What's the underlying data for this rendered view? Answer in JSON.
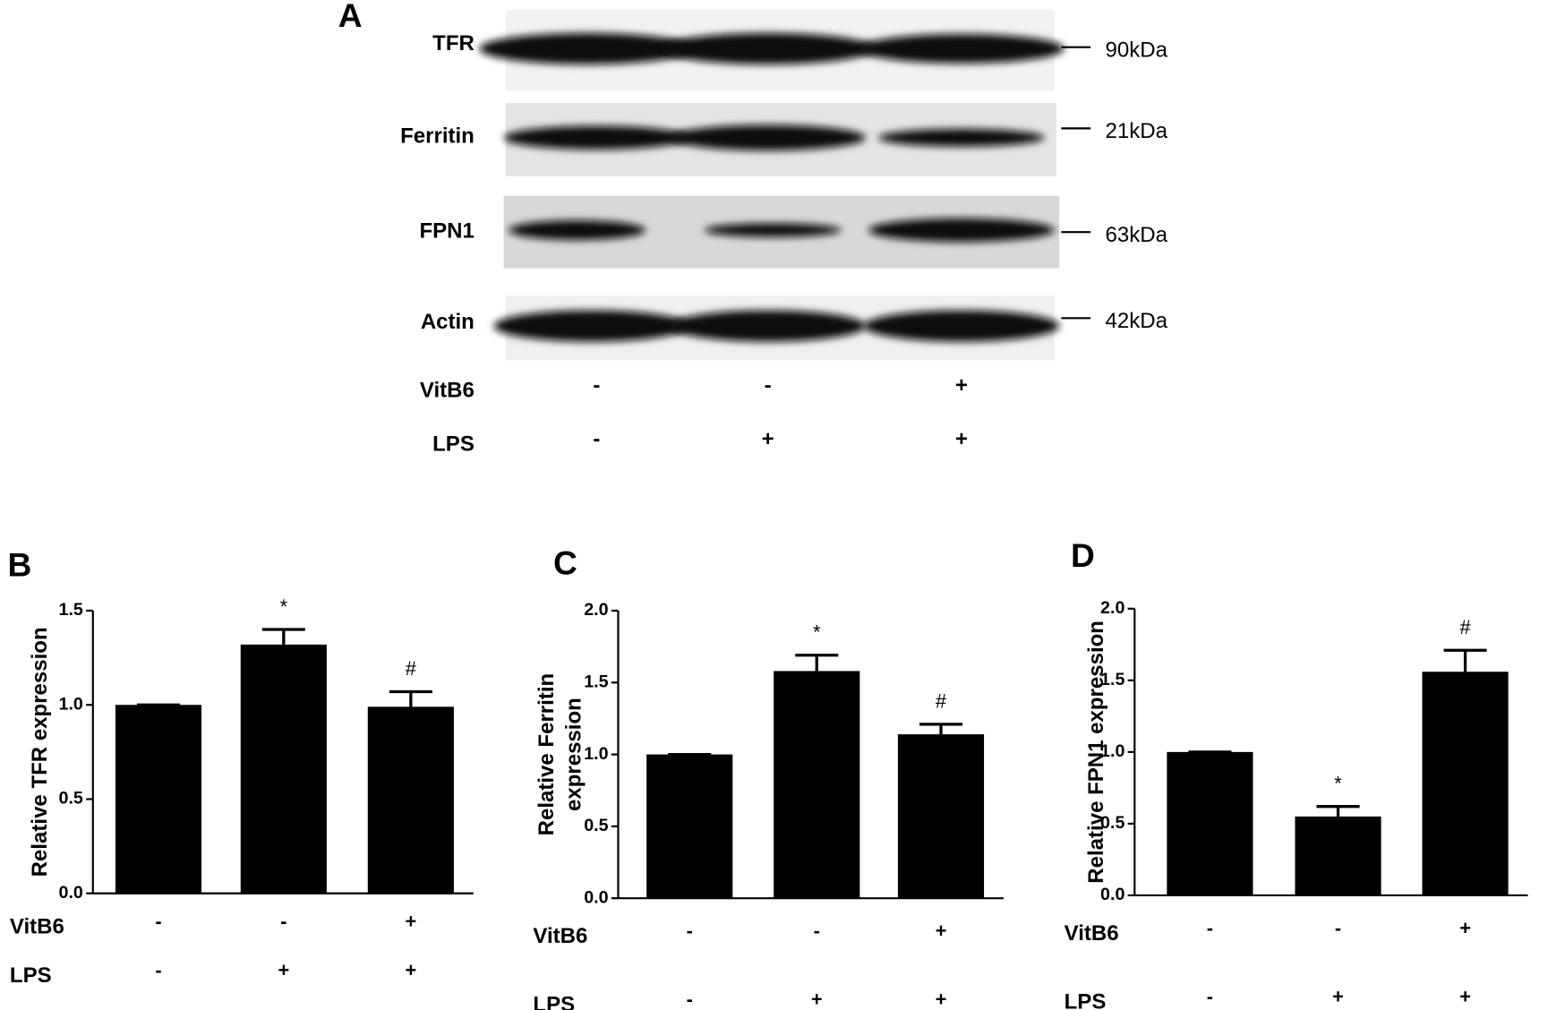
{
  "blot": {
    "panel": "A",
    "rows": [
      {
        "name": "TFR",
        "size": "90kDa"
      },
      {
        "name": "Ferritin",
        "size": "21kDa"
      },
      {
        "name": "FPN1",
        "size": "63kDa"
      },
      {
        "name": "Actin",
        "size": "42kDa"
      }
    ],
    "treatments": [
      {
        "name": "VitB6",
        "values": [
          "-",
          "-",
          "+"
        ]
      },
      {
        "name": "LPS",
        "values": [
          "-",
          "+",
          "+"
        ]
      }
    ]
  },
  "chart_data": [
    {
      "type": "bar",
      "panel": "B",
      "y_label": "Relative TFR expression",
      "color": "#000000",
      "values": [
        1.0,
        1.32,
        0.99
      ],
      "errors": [
        0,
        0.08,
        0.08
      ],
      "annotations": [
        null,
        "*",
        "#"
      ],
      "ylim": [
        0,
        1.5
      ],
      "yticks": [
        {
          "value": 0,
          "label": "0.0"
        },
        0.5,
        {
          "value": 1,
          "label": "1.0"
        },
        1.5
      ],
      "treatments": [
        {
          "name": "VitB6",
          "values": [
            "-",
            "-",
            "+"
          ]
        },
        {
          "name": "LPS",
          "values": [
            "-",
            "+",
            "+"
          ]
        }
      ]
    },
    {
      "type": "bar",
      "panel": "C",
      "y_label": [
        "Relative Ferritin",
        "expression"
      ],
      "color": "#000000",
      "values": [
        1.0,
        1.58,
        1.14
      ],
      "errors": [
        0,
        0.11,
        0.07
      ],
      "annotations": [
        null,
        "*",
        "#"
      ],
      "ylim": [
        0,
        2
      ],
      "yticks": [
        {
          "value": 0,
          "label": "0.0"
        },
        0.5,
        {
          "value": 1,
          "label": "1.0"
        },
        1.5,
        {
          "value": 2,
          "label": "2.0"
        }
      ],
      "treatments": [
        {
          "name": "VitB6",
          "values": [
            "-",
            "-",
            "+"
          ]
        },
        {
          "name": "LPS",
          "values": [
            "-",
            "+",
            "+"
          ]
        }
      ]
    },
    {
      "type": "bar",
      "panel": "D",
      "y_label": "Relative FPN1 expression",
      "color": "#000000",
      "values": [
        1.0,
        0.55,
        1.56
      ],
      "errors": [
        0,
        0.07,
        0.15
      ],
      "annotations": [
        null,
        "*",
        "#"
      ],
      "ylim": [
        0,
        2
      ],
      "yticks": [
        {
          "value": 0,
          "label": "0.0"
        },
        0.5,
        {
          "value": 1,
          "label": "1.0"
        },
        1.5,
        {
          "value": 2,
          "label": "2.0"
        }
      ],
      "treatments": [
        {
          "name": "VitB6",
          "values": [
            "-",
            "-",
            "+"
          ]
        },
        {
          "name": "LPS",
          "values": [
            "-",
            "+",
            "+"
          ]
        }
      ]
    }
  ]
}
